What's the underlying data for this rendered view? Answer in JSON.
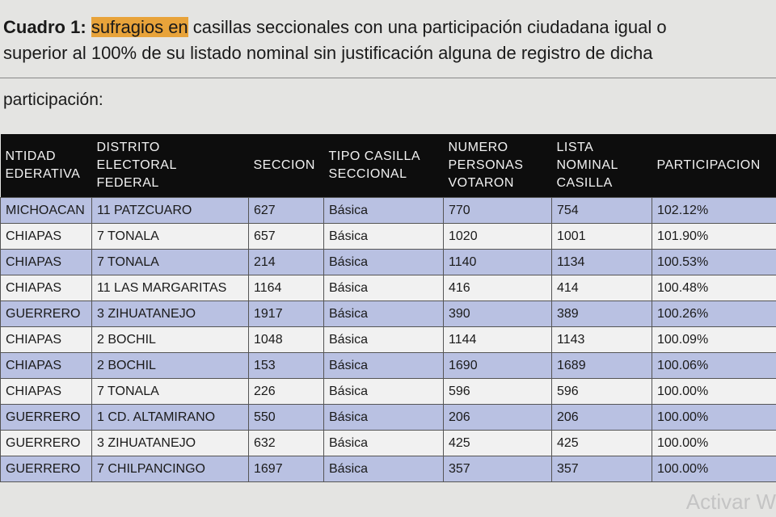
{
  "heading": {
    "label": "Cuadro 1:",
    "highlight": "sufragios en",
    "line_1": "casillas seccionales con una participación ciudadana igual o",
    "line_2": "superior al 100% de su listado nominal sin justificación alguna de registro de dicha",
    "line_3": "participación:"
  },
  "table": {
    "columns": [
      [
        "NTIDAD",
        "EDERATIVA"
      ],
      [
        "DISTRITO",
        "ELECTORAL",
        "FEDERAL"
      ],
      [
        "SECCION"
      ],
      [
        "TIPO  CASILLA",
        "SECCIONAL"
      ],
      [
        "NUMERO",
        "PERSONAS",
        "VOTARON"
      ],
      [
        "LISTA",
        "NOMINAL",
        "CASILLA"
      ],
      [
        "PARTICIPACION"
      ]
    ],
    "rows": [
      [
        "MICHOACAN",
        "11 PATZCUARO",
        "627",
        "Básica",
        "770",
        "754",
        "102.12%"
      ],
      [
        "CHIAPAS",
        "7 TONALA",
        "657",
        "Básica",
        "1020",
        "1001",
        "101.90%"
      ],
      [
        "CHIAPAS",
        "7 TONALA",
        "214",
        "Básica",
        "1140",
        "1134",
        "100.53%"
      ],
      [
        "CHIAPAS",
        "11 LAS MARGARITAS",
        "1164",
        "Básica",
        "416",
        "414",
        "100.48%"
      ],
      [
        "GUERRERO",
        "3 ZIHUATANEJO",
        "1917",
        "Básica",
        "390",
        "389",
        "100.26%"
      ],
      [
        "CHIAPAS",
        "2 BOCHIL",
        "1048",
        "Básica",
        "1144",
        "1143",
        "100.09%"
      ],
      [
        "CHIAPAS",
        "2 BOCHIL",
        "153",
        "Básica",
        "1690",
        "1689",
        "100.06%"
      ],
      [
        "CHIAPAS",
        "7 TONALA",
        "226",
        "Básica",
        "596",
        "596",
        "100.00%"
      ],
      [
        "GUERRERO",
        "1 CD. ALTAMIRANO",
        "550",
        "Básica",
        "206",
        "206",
        "100.00%"
      ],
      [
        "GUERRERO",
        "3 ZIHUATANEJO",
        "632",
        "Básica",
        "425",
        "425",
        "100.00%"
      ],
      [
        "GUERRERO",
        "7 CHILPANCINGO",
        "1697",
        "Básica",
        "357",
        "357",
        "100.00%"
      ]
    ]
  },
  "watermark": "Activar W"
}
